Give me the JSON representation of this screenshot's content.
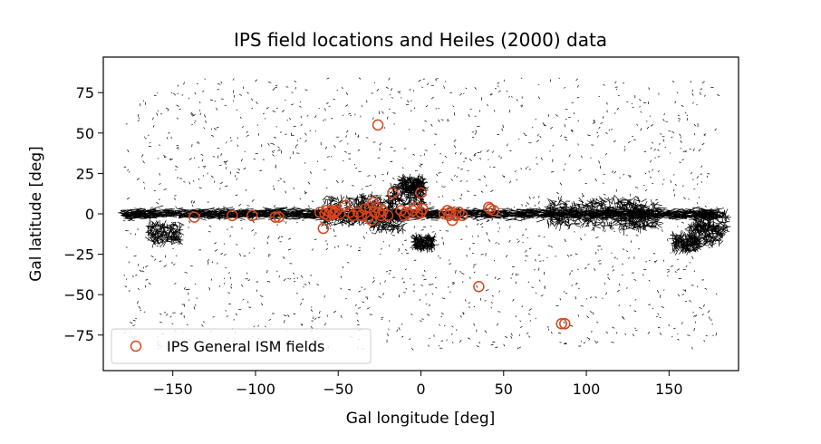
{
  "chart_data": {
    "type": "scatter",
    "title": "IPS field locations and Heiles (2000) data",
    "xlabel": "Gal longitude [deg]",
    "ylabel": "Gal latitude [deg]",
    "xlim": [
      -192,
      192
    ],
    "ylim": [
      -97,
      97
    ],
    "xticks": [
      -150,
      -100,
      -50,
      0,
      50,
      100,
      150
    ],
    "yticks": [
      -75,
      -50,
      -25,
      0,
      25,
      50,
      75
    ],
    "xtick_labels": [
      "−150",
      "−100",
      "−50",
      "0",
      "50",
      "100",
      "150"
    ],
    "ytick_labels": [
      "−75",
      "−50",
      "−25",
      "0",
      "25",
      "50",
      "75"
    ],
    "grid": false,
    "legend": {
      "placement": "lower-left",
      "entries": [
        "IPS General ISM fields"
      ]
    },
    "colors": {
      "ips_marker": "#d6451b",
      "polarization_vectors": "#000000"
    },
    "series": [
      {
        "name": "IPS General ISM fields",
        "marker": "open-circle",
        "points": [
          [
            -137,
            -2
          ],
          [
            -114,
            -1
          ],
          [
            -102,
            -1
          ],
          [
            -88,
            -2
          ],
          [
            -86,
            -2
          ],
          [
            -61,
            1
          ],
          [
            -59,
            -9
          ],
          [
            -58,
            0
          ],
          [
            -57,
            2
          ],
          [
            -56,
            -1
          ],
          [
            -55,
            1
          ],
          [
            -54,
            2
          ],
          [
            -53,
            0
          ],
          [
            -52,
            1
          ],
          [
            -51,
            2
          ],
          [
            -49,
            0
          ],
          [
            -46,
            5
          ],
          [
            -43,
            1
          ],
          [
            -41,
            -1
          ],
          [
            -38,
            1
          ],
          [
            -36,
            -1
          ],
          [
            -34,
            3
          ],
          [
            -32,
            -2
          ],
          [
            -31,
            4
          ],
          [
            -30,
            -4
          ],
          [
            -29,
            7
          ],
          [
            -28,
            1
          ],
          [
            -27,
            4
          ],
          [
            -26,
            55
          ],
          [
            -25,
            1
          ],
          [
            -24,
            -1
          ],
          [
            -23,
            2
          ],
          [
            -20,
            -1
          ],
          [
            -17,
            13
          ],
          [
            -12,
            2
          ],
          [
            -10,
            -1
          ],
          [
            -9,
            1
          ],
          [
            -5,
            2
          ],
          [
            -3,
            4
          ],
          [
            -2,
            0
          ],
          [
            0,
            13
          ],
          [
            0,
            1
          ],
          [
            1,
            3
          ],
          [
            14,
            0
          ],
          [
            16,
            2
          ],
          [
            17,
            -1
          ],
          [
            18,
            1
          ],
          [
            19,
            -4
          ],
          [
            21,
            -1
          ],
          [
            23,
            1
          ],
          [
            25,
            -1
          ],
          [
            35,
            -45
          ],
          [
            41,
            4
          ],
          [
            42,
            3
          ],
          [
            44,
            2
          ],
          [
            85,
            -68
          ],
          [
            87,
            -68
          ]
        ]
      }
    ]
  }
}
